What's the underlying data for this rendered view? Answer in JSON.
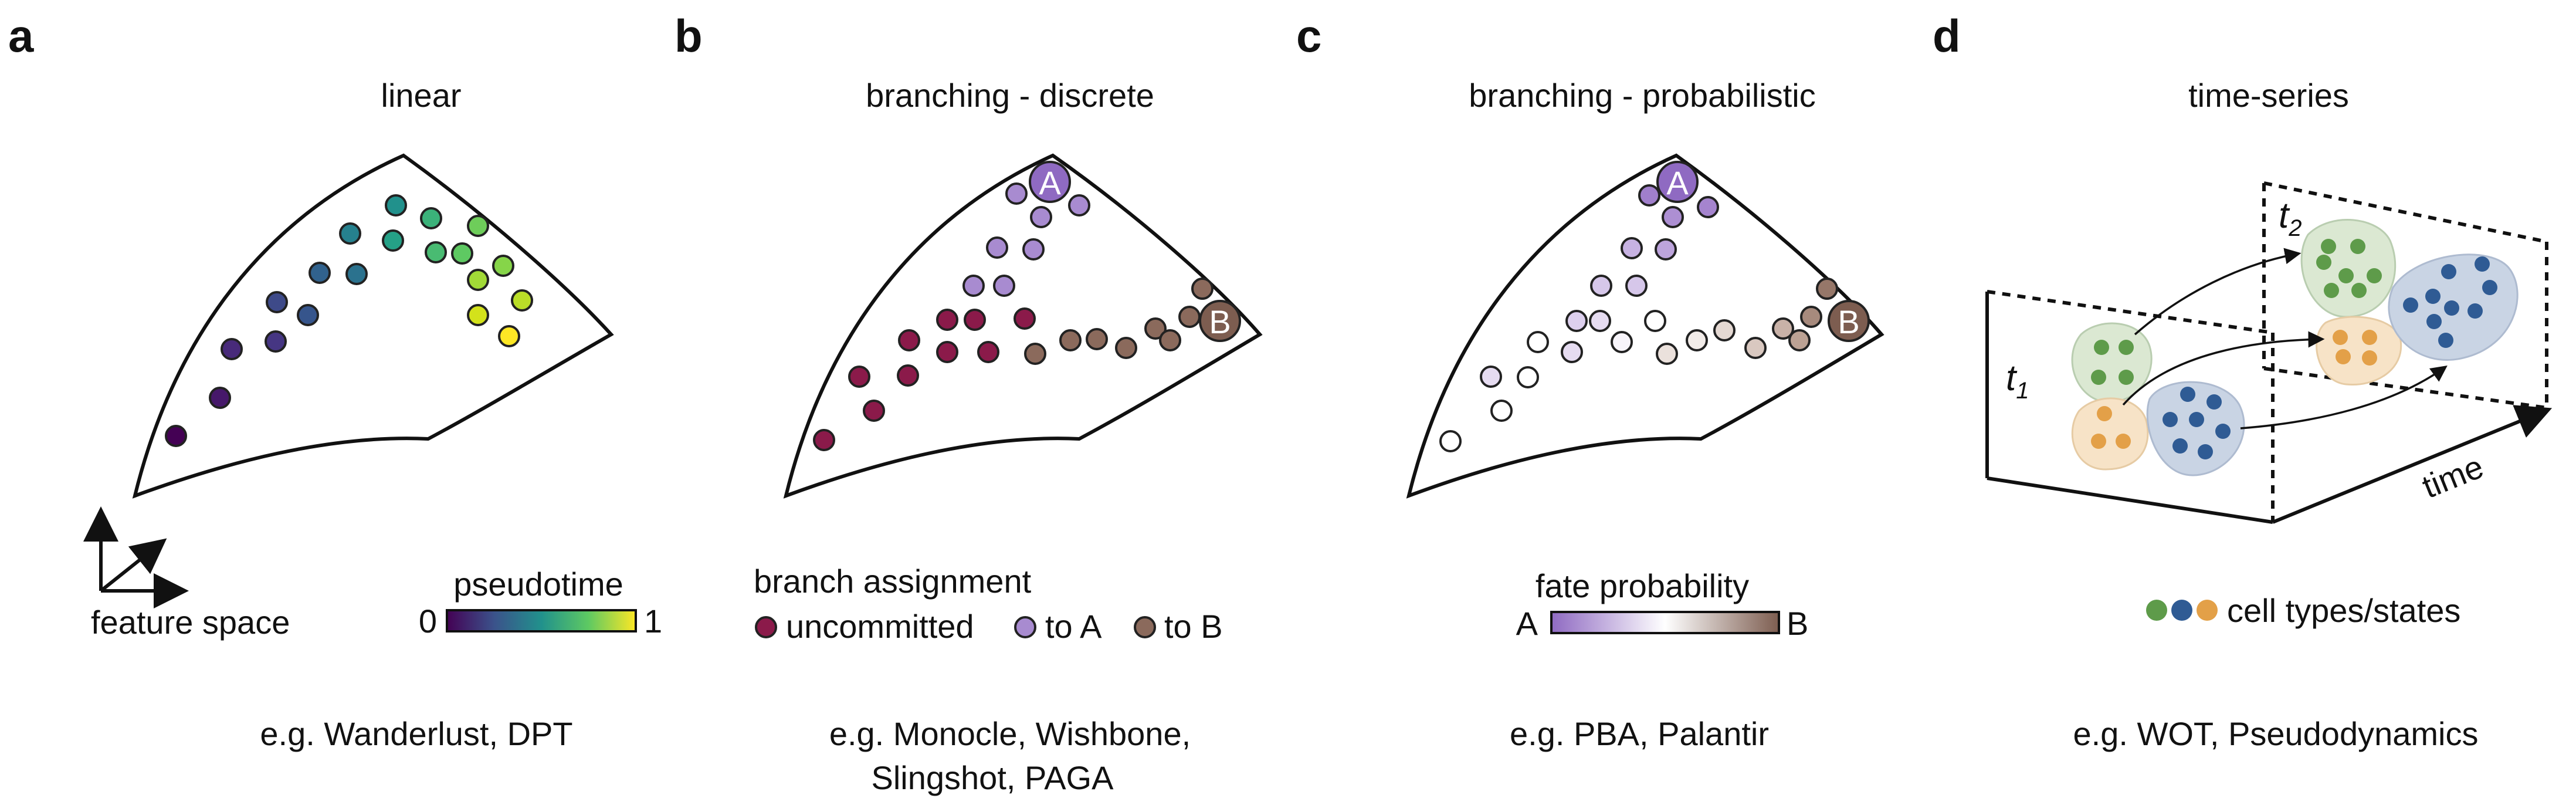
{
  "panels": {
    "a": {
      "letter": "a",
      "title": "linear",
      "feature_space_label": "feature space",
      "colorbar_title": "pseudotime",
      "colorbar_min": "0",
      "colorbar_max": "1",
      "examples": "e.g. Wanderlust, DPT"
    },
    "b": {
      "letter": "b",
      "title": "branching - discrete",
      "legend_title": "branch assignment",
      "legend_uncommitted": "uncommitted",
      "legend_to_a": "to A",
      "legend_to_b": "to B",
      "node_a": "A",
      "node_b": "B",
      "examples_line1": "e.g. Monocle, Wishbone,",
      "examples_line2": "Slingshot, PAGA"
    },
    "c": {
      "letter": "c",
      "title": "branching - probabilistic",
      "colorbar_title": "fate probability",
      "colorbar_min": "A",
      "colorbar_max": "B",
      "node_a": "A",
      "node_b": "B",
      "examples": "e.g. PBA, Palantir"
    },
    "d": {
      "letter": "d",
      "title": "time-series",
      "t1_label": "t",
      "t1_sub": "1",
      "t2_label": "t",
      "t2_sub": "2",
      "time_axis_label": "time",
      "legend_label": "cell types/states",
      "examples": "e.g. WOT, Pseudodynamics"
    }
  },
  "colors": {
    "viridis": [
      "#440154",
      "#3b528b",
      "#21918c",
      "#5ec962",
      "#fde725"
    ],
    "uncommitted": "#8b1a4a",
    "to_a": "#a88bd0",
    "node_a": "#8f6ac2",
    "to_b": "#8b6a5c",
    "node_b": "#7d5d50",
    "prob_a": "#8f6ac2",
    "prob_mid": "#ffffff",
    "prob_b": "#7d5d50",
    "green_type": "#5e9b4a",
    "blue_type": "#2f5b94",
    "orange_type": "#e3a048",
    "green_blob": "#dbe8d2",
    "blue_blob": "#c9d4e4",
    "orange_blob": "#f7e3c7"
  }
}
